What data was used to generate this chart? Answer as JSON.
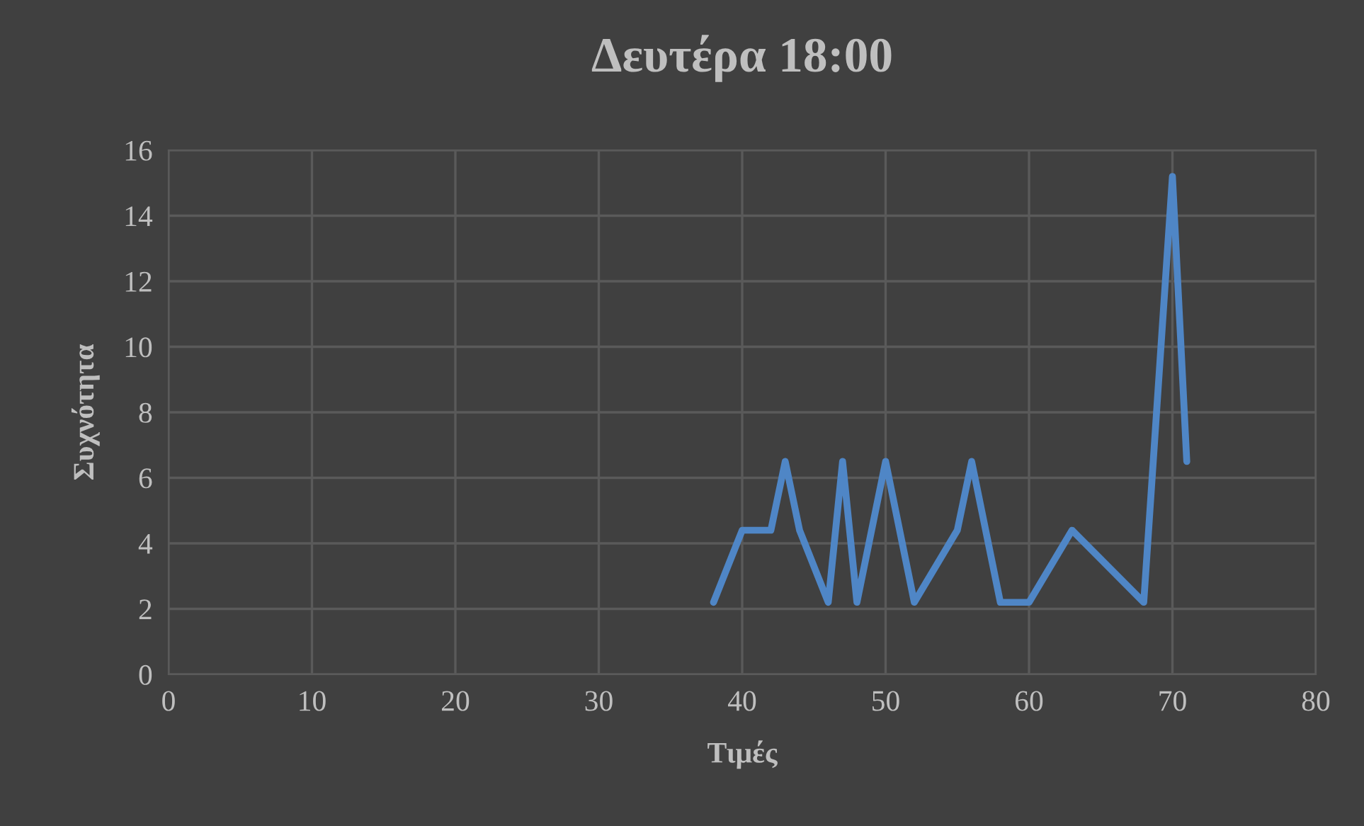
{
  "chart_data": {
    "type": "line",
    "title": "Δευτέρα 18:00",
    "xlabel": "Τιμές",
    "ylabel": "Συχνότητα",
    "series": [
      {
        "color": "#4f86c6",
        "x": [
          38,
          40,
          42,
          43,
          44,
          46,
          47,
          48,
          50,
          52,
          55,
          56,
          58,
          60,
          63,
          68,
          70,
          71
        ],
        "values": [
          2.2,
          4.4,
          4.4,
          6.5,
          4.4,
          2.2,
          6.5,
          2.2,
          6.5,
          2.2,
          4.4,
          6.5,
          2.2,
          2.2,
          4.4,
          2.2,
          15.2,
          6.5
        ]
      }
    ],
    "xlim": [
      0,
      80
    ],
    "xticks": [
      0,
      10,
      20,
      30,
      40,
      50,
      60,
      70,
      80
    ],
    "ylim": [
      0,
      16
    ],
    "yticks": [
      0,
      2,
      4,
      6,
      8,
      10,
      12,
      14,
      16
    ],
    "grid": true,
    "marker": "none",
    "line_style": "solid"
  }
}
